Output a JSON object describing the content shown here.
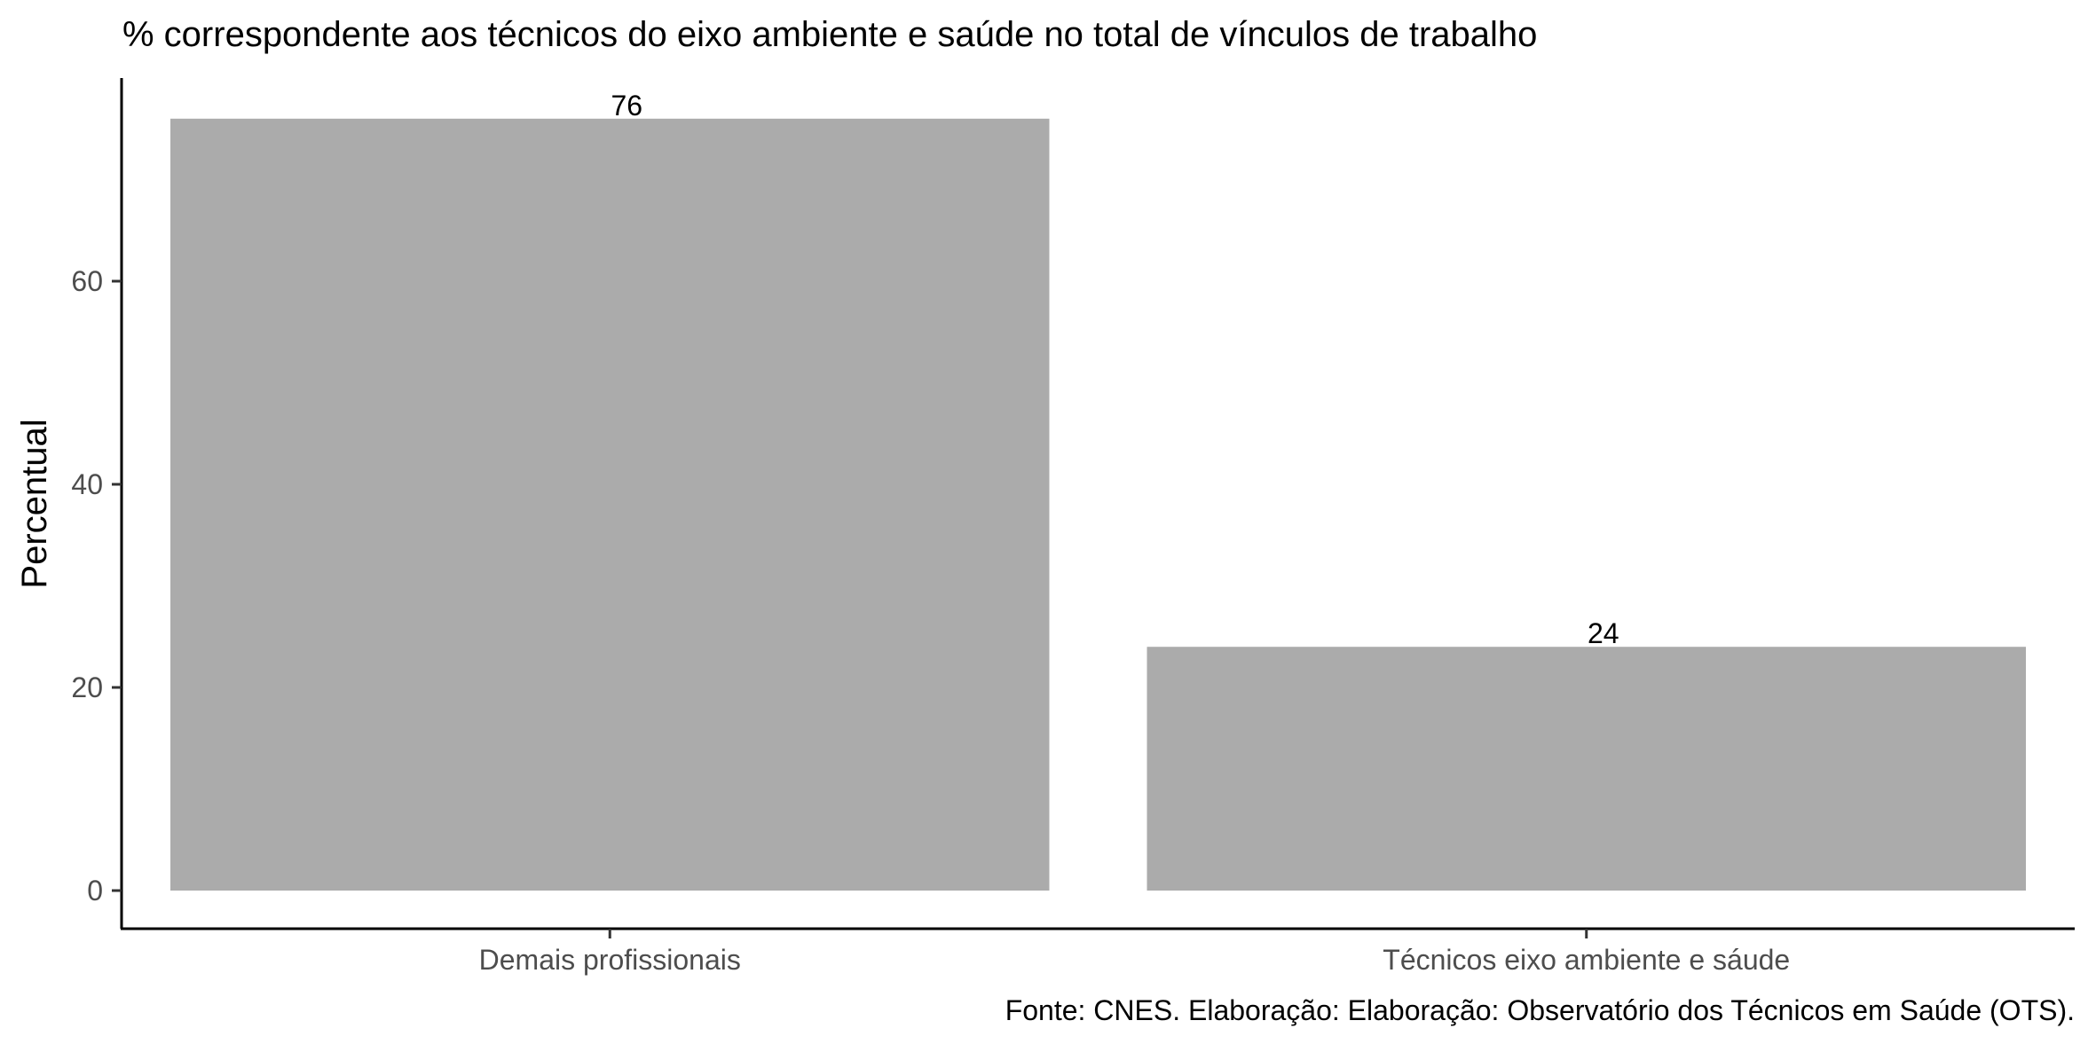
{
  "chart_data": {
    "type": "bar",
    "title": "% correspondente aos técnicos do eixo ambiente e saúde no total de vínculos de trabalho",
    "xlabel": "",
    "ylabel": "Percentual",
    "categories": [
      "Demais profissionais",
      "Técnicos eixo ambiente e sáude"
    ],
    "values": [
      76,
      24
    ],
    "data_labels": [
      "76",
      "24"
    ],
    "ylim": [
      0,
      80
    ],
    "yticks": [
      0,
      20,
      40,
      60
    ],
    "ytick_labels": [
      "0",
      "20",
      "40",
      "60"
    ],
    "bar_color": "#ababab",
    "grid": false,
    "legend": "none",
    "caption": "Fonte: CNES. Elaboração: Elaboração: Observatório dos Técnicos em Saúde (OTS)."
  }
}
